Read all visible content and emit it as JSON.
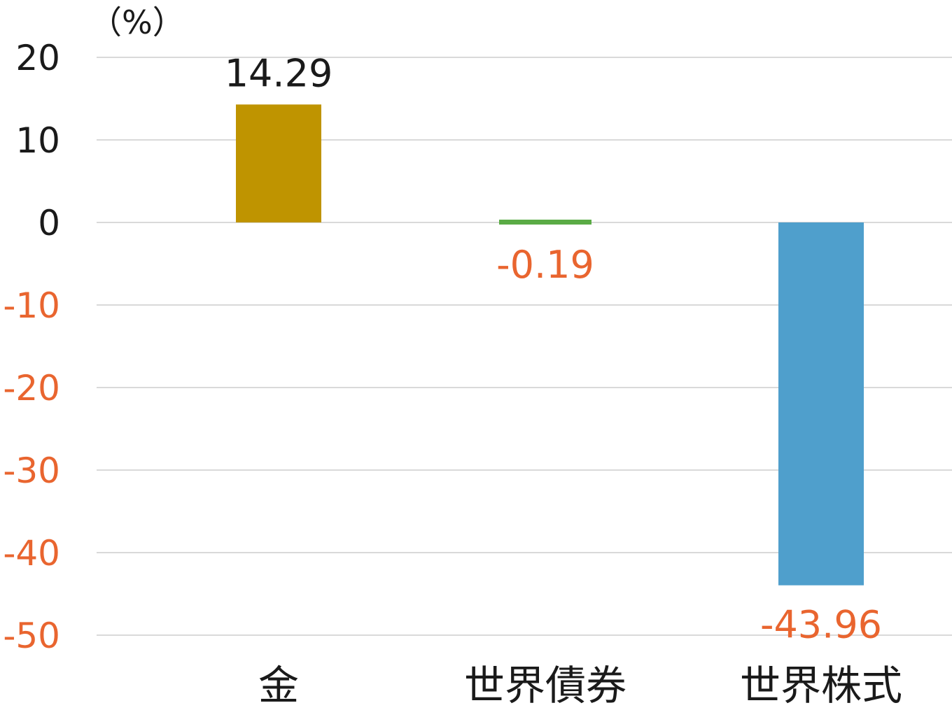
{
  "chart_data": {
    "type": "bar",
    "unit_label": "（%）",
    "categories": [
      "金",
      "世界債券",
      "世界株式"
    ],
    "values": [
      14.29,
      -0.19,
      -43.96
    ],
    "value_labels": [
      "14.29",
      "-0.19",
      "-43.96"
    ],
    "bar_colors": [
      "#bf9400",
      "#5aab45",
      "#4f9fcc"
    ],
    "ylim": [
      -50,
      20
    ],
    "yticks": [
      20,
      10,
      0,
      -10,
      -20,
      -30,
      -40,
      -50
    ],
    "ytick_labels": [
      "20",
      "10",
      "0",
      "-10",
      "-20",
      "-30",
      "-40",
      "-50"
    ],
    "grid": true,
    "legend": false,
    "positive_text_color": "#1a1a1a",
    "negative_text_color": "#e9652f"
  }
}
